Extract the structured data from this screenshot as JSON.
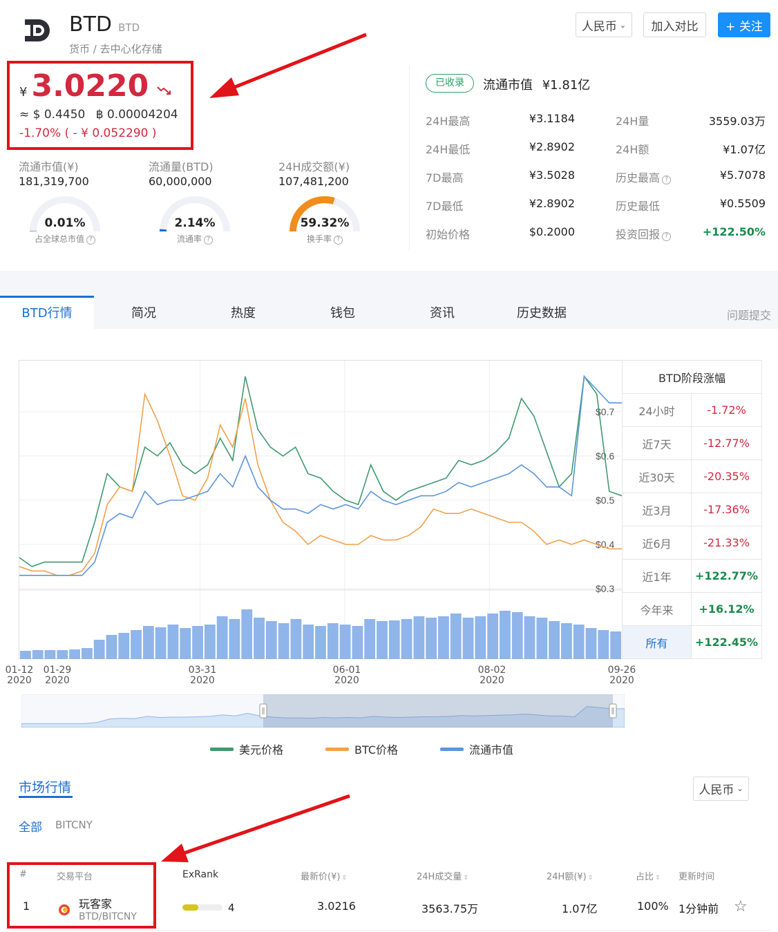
{
  "header": {
    "coin_symbol": "BTD",
    "coin_sub": "BTD",
    "breadcrumb": "货币 / 去中心化存储",
    "currency_select": "人民币",
    "compare_button": "加入对比",
    "follow_button": "+ 关注"
  },
  "price": {
    "currency_symbol": "¥",
    "value": "3.0220",
    "trend_icon": "down-trend-icon",
    "usd": "≈ $ 0.4450",
    "btc": "฿ 0.00004204",
    "change": "-1.70% ( - ¥ 0.052290 )"
  },
  "stats": [
    {
      "label": "流通市值(¥)",
      "value": "181,319,700",
      "gauge_value": "0.01%",
      "gauge_label": "占全球总市值",
      "gauge_fraction": 0.0001
    },
    {
      "label": "流通量(BTD)",
      "value": "60,000,000",
      "gauge_value": "2.14%",
      "gauge_label": "流通率",
      "gauge_fraction": 0.0214
    },
    {
      "label": "24H成交额(¥)",
      "value": "107,481,200",
      "gauge_value": "59.32%",
      "gauge_label": "换手率",
      "gauge_fraction": 0.5932
    }
  ],
  "right_stats": {
    "badge": "已收录",
    "market_cap_label": "流通市值",
    "market_cap_value": "¥1.81亿",
    "rows": [
      {
        "l1": "24H最高",
        "v1": "¥3.1184",
        "l2": "24H量",
        "v2": "3559.03万"
      },
      {
        "l1": "24H最低",
        "v1": "¥2.8902",
        "l2": "24H额",
        "v2": "¥1.07亿"
      },
      {
        "l1": "7D最高",
        "v1": "¥3.5028",
        "l2": "历史最高",
        "v2": "¥5.7078"
      },
      {
        "l1": "7D最低",
        "v1": "¥2.8902",
        "l2": "历史最低",
        "v2": "¥0.5509"
      },
      {
        "l1": "初始价格",
        "v1": "$0.2000",
        "l2": "投资回报",
        "v2": "+122.50%"
      }
    ]
  },
  "tabs": [
    "BTD行情",
    "简况",
    "热度",
    "钱包",
    "资讯",
    "历史数据"
  ],
  "report_link": "问题提交",
  "performance": {
    "title": "BTD阶段涨幅",
    "rows": [
      {
        "label": "24小时",
        "value": "-1.72%",
        "dir": "neg"
      },
      {
        "label": "近7天",
        "value": "-12.77%",
        "dir": "neg"
      },
      {
        "label": "近30天",
        "value": "-20.35%",
        "dir": "neg"
      },
      {
        "label": "近3月",
        "value": "-17.36%",
        "dir": "neg"
      },
      {
        "label": "近6月",
        "value": "-21.33%",
        "dir": "neg"
      },
      {
        "label": "近1年",
        "value": "+122.77%",
        "dir": "pos"
      },
      {
        "label": "今年来",
        "value": "+16.12%",
        "dir": "pos"
      },
      {
        "label": "所有",
        "value": "+122.45%",
        "dir": "pos"
      }
    ]
  },
  "chart_data": {
    "type": "line",
    "x_ticks": [
      {
        "date": "01-12",
        "year": "2020"
      },
      {
        "date": "01-29",
        "year": "2020"
      },
      {
        "date": "03-31",
        "year": "2020"
      },
      {
        "date": "06-01",
        "year": "2020"
      },
      {
        "date": "08-02",
        "year": "2020"
      },
      {
        "date": "09-26",
        "year": "2020"
      }
    ],
    "y_ticks": [
      "$0.7",
      "$0.6",
      "$0.5",
      "$0.4",
      "$0.3"
    ],
    "ylim": [
      0.3,
      0.8
    ],
    "series": [
      {
        "name": "美元价格",
        "color": "#3f9a6e",
        "values": [
          0.37,
          0.35,
          0.36,
          0.36,
          0.36,
          0.36,
          0.45,
          0.56,
          0.53,
          0.52,
          0.62,
          0.6,
          0.63,
          0.58,
          0.56,
          0.58,
          0.64,
          0.59,
          0.78,
          0.66,
          0.62,
          0.6,
          0.62,
          0.56,
          0.55,
          0.52,
          0.5,
          0.49,
          0.58,
          0.52,
          0.5,
          0.52,
          0.53,
          0.54,
          0.55,
          0.59,
          0.58,
          0.59,
          0.61,
          0.64,
          0.73,
          0.69,
          0.61,
          0.53,
          0.56,
          0.78,
          0.74,
          0.52,
          0.51
        ]
      },
      {
        "name": "BTC价格",
        "color": "#f2a14b",
        "values": [
          0.35,
          0.34,
          0.34,
          0.33,
          0.33,
          0.34,
          0.38,
          0.49,
          0.53,
          0.52,
          0.74,
          0.68,
          0.6,
          0.51,
          0.5,
          0.55,
          0.67,
          0.62,
          0.73,
          0.58,
          0.5,
          0.45,
          0.43,
          0.4,
          0.42,
          0.41,
          0.4,
          0.4,
          0.42,
          0.41,
          0.41,
          0.42,
          0.44,
          0.48,
          0.47,
          0.47,
          0.48,
          0.47,
          0.46,
          0.45,
          0.45,
          0.43,
          0.4,
          0.41,
          0.4,
          0.41,
          0.4,
          0.39,
          0.39
        ]
      },
      {
        "name": "流通市值",
        "color": "#5b95dd",
        "values": [
          0.33,
          0.33,
          0.33,
          0.33,
          0.33,
          0.33,
          0.36,
          0.45,
          0.47,
          0.46,
          0.52,
          0.49,
          0.5,
          0.5,
          0.51,
          0.52,
          0.56,
          0.53,
          0.6,
          0.53,
          0.5,
          0.48,
          0.48,
          0.47,
          0.49,
          0.48,
          0.49,
          0.48,
          0.52,
          0.5,
          0.49,
          0.5,
          0.51,
          0.51,
          0.52,
          0.54,
          0.53,
          0.54,
          0.55,
          0.56,
          0.58,
          0.56,
          0.53,
          0.53,
          0.51,
          0.78,
          0.75,
          0.72,
          0.72
        ]
      }
    ],
    "volume": [
      0.12,
      0.13,
      0.13,
      0.13,
      0.14,
      0.16,
      0.28,
      0.35,
      0.38,
      0.42,
      0.48,
      0.46,
      0.5,
      0.45,
      0.48,
      0.5,
      0.62,
      0.58,
      0.72,
      0.6,
      0.55,
      0.52,
      0.58,
      0.5,
      0.48,
      0.52,
      0.5,
      0.48,
      0.58,
      0.55,
      0.56,
      0.58,
      0.62,
      0.6,
      0.62,
      0.66,
      0.6,
      0.62,
      0.66,
      0.7,
      0.68,
      0.62,
      0.6,
      0.55,
      0.52,
      0.5,
      0.45,
      0.42,
      0.4
    ]
  },
  "legend": [
    "美元价格",
    "BTC价格",
    "流通市值"
  ],
  "market": {
    "title": "市场行情",
    "currency_select": "人民币",
    "filters": [
      "全部",
      "BITCNY"
    ],
    "headers": [
      "#",
      "交易平台",
      "ExRank",
      "最新价(¥)",
      "24H成交量",
      "24H额(¥)",
      "占比",
      "更新时间"
    ],
    "row": {
      "rank": "1",
      "exchange": "玩客家",
      "pair": "BTD/BITCNY",
      "exrank": "4",
      "exrank_fraction": 0.4,
      "price": "3.0216",
      "volume": "3563.75万",
      "amount": "1.07亿",
      "share": "100%",
      "updated": "1分钟前"
    }
  }
}
